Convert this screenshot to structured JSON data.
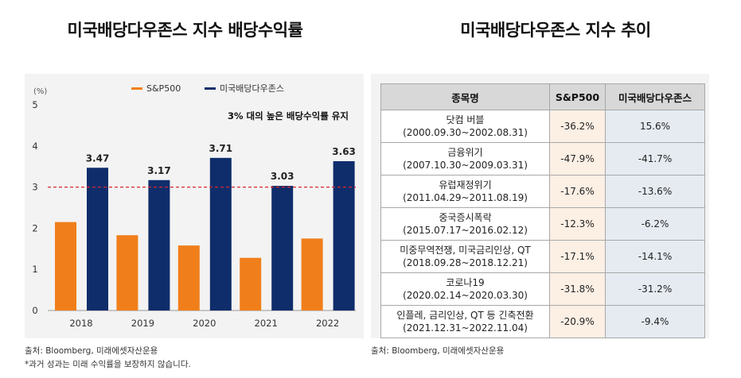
{
  "titles": {
    "left": "미국배당다우존스 지수 배당수익률",
    "right": "미국배당다우존스 지수 추이"
  },
  "notes": {
    "left_source": "출처: Bloomberg, 미래에셋자산운용",
    "left_disclaimer": "*과거 성과는 미래 수익률을 보장하지 않습니다.",
    "right_source": "출처: Bloomberg, 미래에셋자산운용"
  },
  "colors": {
    "sp500": "#f07f1b",
    "dividend": "#0f2d6b",
    "reference": "#d7262e"
  },
  "chart_data": {
    "type": "bar",
    "unit_label": "(%)",
    "categories": [
      "2018",
      "2019",
      "2020",
      "2021",
      "2022"
    ],
    "series": [
      {
        "name": "S&P500",
        "values": [
          2.15,
          1.83,
          1.58,
          1.28,
          1.75
        ]
      },
      {
        "name": "미국배당다우존스",
        "values": [
          3.47,
          3.17,
          3.71,
          3.03,
          3.63
        ]
      }
    ],
    "data_labels": [
      "3.47",
      "3.17",
      "3.71",
      "3.03",
      "3.63"
    ],
    "yticks": [
      "0",
      "1",
      "2",
      "3",
      "4",
      "5"
    ],
    "ylim": [
      0,
      5
    ],
    "reference_line": 3,
    "annotation": "3% 대의 높은 배당수익률 유지",
    "legend_position": "top-center"
  },
  "table": {
    "headers": [
      "종목명",
      "S&P500",
      "미국배당다우존스"
    ],
    "rows": [
      {
        "name": "닷컴 버블",
        "period": "(2000.09.30~2002.08.31)",
        "sp500": "-36.2%",
        "dividend": "15.6%"
      },
      {
        "name": "금융위기",
        "period": "(2007.10.30~2009.03.31)",
        "sp500": "-47.9%",
        "dividend": "-41.7%"
      },
      {
        "name": "유럽재정위기",
        "period": "(2011.04.29~2011.08.19)",
        "sp500": "-17.6%",
        "dividend": "-13.6%"
      },
      {
        "name": "중국증시폭락",
        "period": "(2015.07.17~2016.02.12)",
        "sp500": "-12.3%",
        "dividend": "-6.2%"
      },
      {
        "name": "미중무역전쟁, 미국금리인상, QT",
        "period": "(2018.09.28~2018.12.21)",
        "sp500": "-17.1%",
        "dividend": "-14.1%"
      },
      {
        "name": "코로나19",
        "period": "(2020.02.14~2020.03.30)",
        "sp500": "-31.8%",
        "dividend": "-31.2%"
      },
      {
        "name": "인플레, 금리인상, QT 등 긴축전환",
        "period": "(2021.12.31~2022.11.04)",
        "sp500": "-20.9%",
        "dividend": "-9.4%"
      }
    ]
  }
}
